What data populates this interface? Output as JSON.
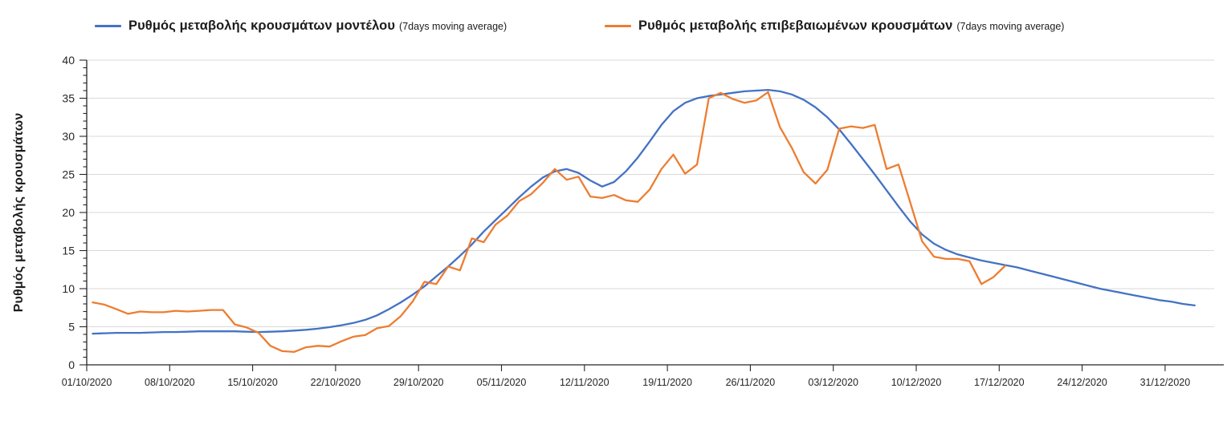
{
  "legend": [
    {
      "label": "Ρυθμός μεταβολής κρουσμάτων μοντέλου",
      "sub": "(7days moving average)",
      "color": "#4472C4"
    },
    {
      "label": "Ρυθμός μεταβολής επιβεβαιωμένων κρουσμάτων",
      "sub": "(7days moving average)",
      "color": "#ED7D31"
    }
  ],
  "colors": {
    "model_line": "#4472C4",
    "confirmed_line": "#ED7D31",
    "gridline": "#D9D9D9",
    "axis": "#262626",
    "text": "#1c1c1c"
  },
  "chart_data": {
    "type": "line",
    "title": "",
    "xlabel": "",
    "ylabel": "Ρυθμός μεταβολής κρουσμάτων",
    "ylim": [
      0,
      40
    ],
    "y_tick_step": 5,
    "y_minor_tick_step": 1,
    "grid": "horizontal",
    "legend_position": "top",
    "grid_color": "#D9D9D9",
    "axis_color": "#262626",
    "x_tick_labels": [
      "01/10/2020",
      "08/10/2020",
      "15/10/2020",
      "22/10/2020",
      "29/10/2020",
      "05/11/2020",
      "12/11/2020",
      "19/11/2020",
      "26/11/2020",
      "03/12/2020",
      "10/12/2020",
      "17/12/2020",
      "24/12/2020",
      "31/12/2020"
    ],
    "x_tick_interval_days": 7,
    "series": [
      {
        "name": "Ρυθμός μεταβολής κρουσμάτων μοντέλου (7days moving average)",
        "color": "#4472C4",
        "start_date": "01/10/2020",
        "values": [
          4.1,
          4.15,
          4.2,
          4.2,
          4.2,
          4.25,
          4.3,
          4.3,
          4.35,
          4.4,
          4.4,
          4.4,
          4.4,
          4.35,
          4.3,
          4.35,
          4.4,
          4.5,
          4.6,
          4.75,
          4.95,
          5.2,
          5.5,
          5.9,
          6.5,
          7.3,
          8.2,
          9.2,
          10.3,
          11.6,
          12.9,
          14.3,
          15.8,
          17.5,
          19.0,
          20.5,
          22.0,
          23.4,
          24.6,
          25.4,
          25.7,
          25.2,
          24.2,
          23.4,
          24.0,
          25.4,
          27.2,
          29.3,
          31.5,
          33.3,
          34.4,
          35.0,
          35.3,
          35.5,
          35.7,
          35.9,
          36.0,
          36.1,
          35.9,
          35.5,
          34.8,
          33.8,
          32.5,
          30.9,
          29.0,
          27.0,
          25.0,
          22.9,
          20.8,
          18.8,
          17.1,
          15.9,
          15.1,
          14.5,
          14.1,
          13.7,
          13.4,
          13.1,
          12.8,
          12.4,
          12.0,
          11.6,
          11.2,
          10.8,
          10.4,
          10.0,
          9.7,
          9.4,
          9.1,
          8.8,
          8.5,
          8.3,
          8.0,
          7.8
        ]
      },
      {
        "name": "Ρυθμός μεταβολής επιβεβαιωμένων κρουσμάτων (7days moving average)",
        "color": "#ED7D31",
        "start_date": "01/10/2020",
        "values": [
          8.2,
          7.9,
          7.3,
          6.7,
          7.0,
          6.9,
          6.9,
          7.1,
          7.0,
          7.1,
          7.2,
          7.2,
          5.3,
          4.9,
          4.2,
          2.5,
          1.8,
          1.7,
          2.3,
          2.5,
          2.4,
          3.1,
          3.7,
          3.9,
          4.8,
          5.1,
          6.4,
          8.3,
          10.9,
          10.6,
          12.9,
          12.4,
          16.6,
          16.1,
          18.4,
          19.6,
          21.5,
          22.4,
          23.9,
          25.7,
          24.3,
          24.7,
          22.1,
          21.9,
          22.3,
          21.6,
          21.4,
          23.0,
          25.7,
          27.6,
          25.1,
          26.3,
          35.0,
          35.7,
          34.9,
          34.4,
          34.7,
          35.8,
          31.2,
          28.5,
          25.3,
          23.8,
          25.6,
          31.0,
          31.3,
          31.1,
          31.5,
          25.7,
          26.3,
          21.3,
          16.2,
          14.2,
          13.9,
          13.9,
          13.6,
          10.6,
          11.5,
          13.0
        ]
      }
    ]
  }
}
